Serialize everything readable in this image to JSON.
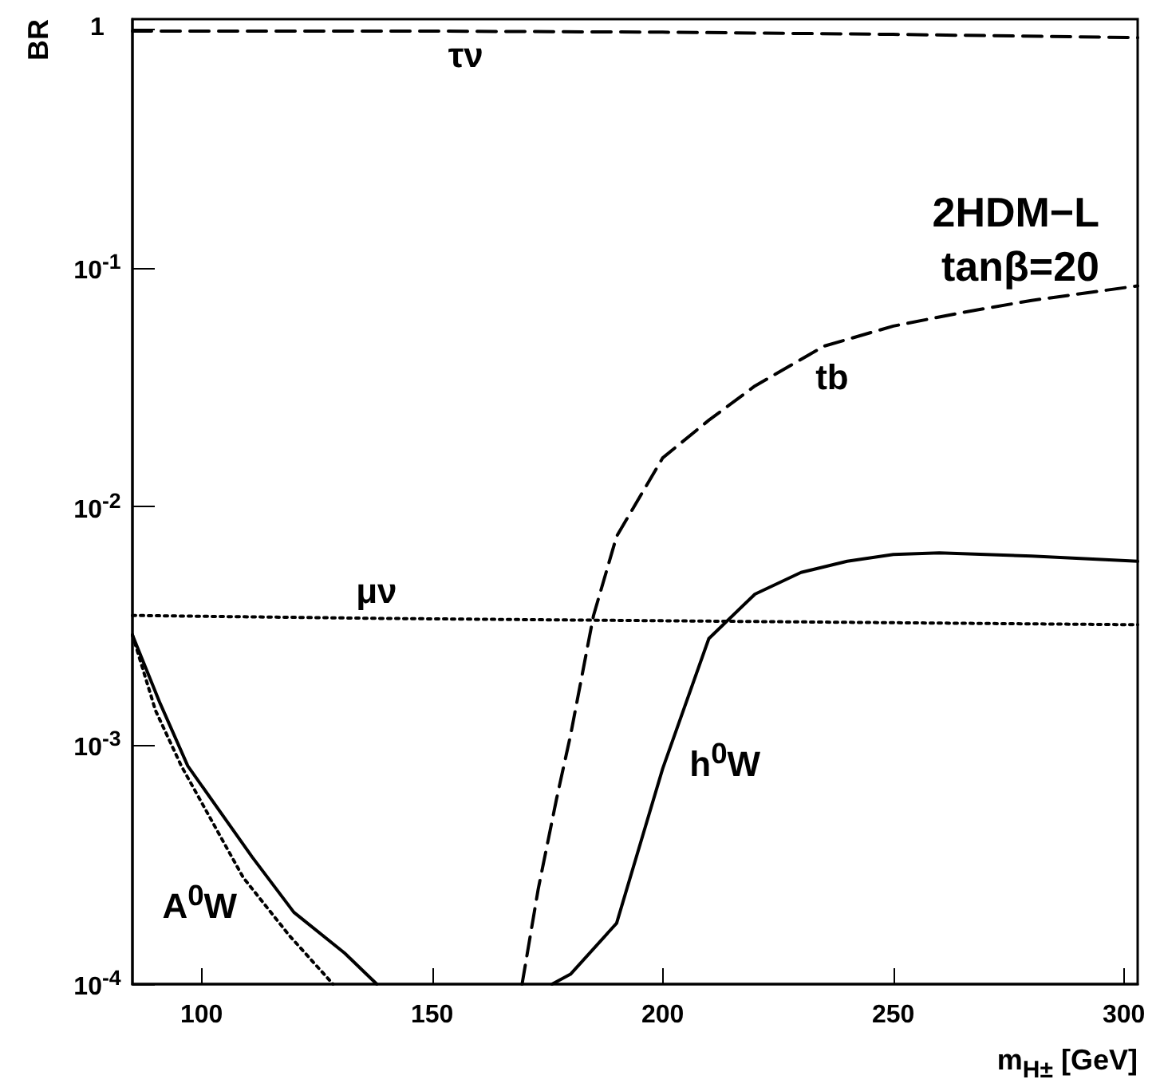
{
  "chart_data": {
    "type": "line",
    "xlabel": "m$_{H±}$ [GeV]",
    "ylabel": "BR",
    "log": "y",
    "grid": false,
    "marker": "none",
    "xlim": [
      85,
      303
    ],
    "xticks": [
      100,
      150,
      200,
      250,
      300
    ],
    "ylim": [
      0.0001,
      1.1
    ],
    "yticks": [
      {
        "value": 0.0001,
        "label": "10$^{-4}$"
      },
      {
        "value": 0.001,
        "label": "10$^{-3}$"
      },
      {
        "value": 0.01,
        "label": "10$^{-2}$"
      },
      {
        "value": 0.1,
        "label": "10$^{-1}$"
      },
      1
    ],
    "series": [
      {
        "color": "#000000",
        "line_style": "dashed",
        "x": [
          85,
          150,
          200,
          250,
          303
        ],
        "values": [
          0.98,
          0.98,
          0.97,
          0.95,
          0.92
        ]
      },
      {
        "color": "#000000",
        "line_style": "dotted",
        "x": [
          85,
          140,
          303
        ],
        "values": [
          0.0035,
          0.0034,
          0.0032
        ]
      },
      {
        "color": "#000000",
        "line_style": "dashed",
        "x": [
          169.5,
          173,
          177,
          180,
          185,
          190,
          200,
          210,
          220,
          235,
          250,
          265,
          280,
          303
        ],
        "values": [
          0.0001,
          0.00025,
          0.0006,
          0.0011,
          0.0035,
          0.0075,
          0.016,
          0.023,
          0.032,
          0.047,
          0.057,
          0.065,
          0.073,
          0.084
        ]
      },
      {
        "color": "#000000",
        "line_style": "solid",
        "x": [
          176,
          180,
          190,
          200,
          210,
          220,
          230,
          240,
          250,
          260,
          280,
          303
        ],
        "values": [
          0.0001,
          0.00011,
          0.00018,
          0.0008,
          0.0028,
          0.0043,
          0.0053,
          0.0059,
          0.0063,
          0.0064,
          0.0062,
          0.0059
        ]
      },
      {
        "color": "#000000",
        "line_style": "solid",
        "x": [
          85,
          91,
          97,
          111,
          120,
          131,
          138
        ],
        "values": [
          0.0029,
          0.0015,
          0.00082,
          0.00034,
          0.0002,
          0.000135,
          0.0001
        ]
      },
      {
        "color": "#000000",
        "line_style": "dotted",
        "x": [
          85,
          90,
          95.6,
          109,
          119,
          128.5
        ],
        "values": [
          0.0029,
          0.0014,
          0.00082,
          0.00028,
          0.00016,
          0.0001
        ]
      }
    ],
    "annotations": [
      {
        "text": "τν",
        "x": 150,
        "y": 0.98
      },
      {
        "text": "μν",
        "x": 140,
        "y": 0.0034
      },
      {
        "text": "tb",
        "x": 235,
        "y": 0.047
      },
      {
        "text": "h$^{0}$W",
        "x": 200,
        "y": 0.0008
      },
      {
        "text": "A$^{0}$W",
        "x": 111,
        "y": 0.00034
      },
      "2HDM−L",
      "tanβ=20"
    ]
  }
}
